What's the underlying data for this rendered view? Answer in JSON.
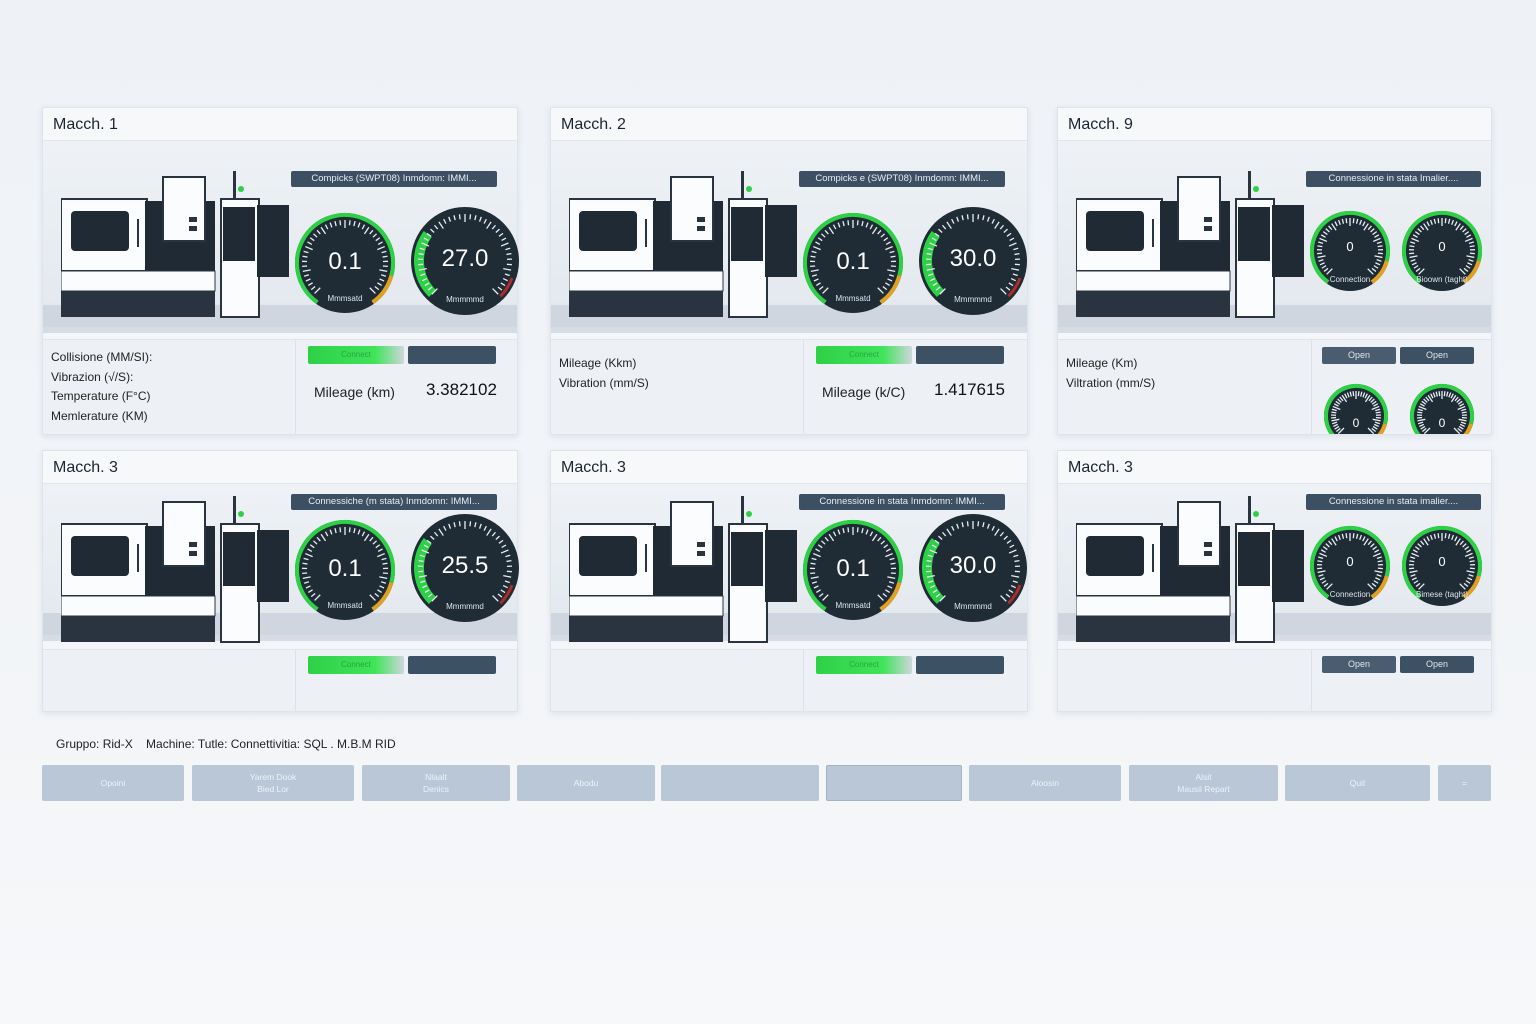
{
  "colors": {
    "accent_green": "#2ed046",
    "panel_dark": "#3d4f63",
    "gauge_face": "#1f2b35",
    "button": "#b9c7d7"
  },
  "cards": [
    {
      "title": "Macch. 1",
      "size": "large",
      "banner": "Compicks (SWPT08) Inmdomn: IMMI...",
      "gauges": [
        {
          "value": "0.1",
          "sub": "Mmmsatd",
          "type": "thin"
        },
        {
          "value": "27.0",
          "sub": "Mmmmmd",
          "type": "fill",
          "level": 0.3
        }
      ],
      "panel": {
        "labels": [
          "Collisione (MM/SI):",
          "Vibrazion (√/S):",
          "Temperature (F°C)",
          "Memlerature (KM)"
        ],
        "status": "Connect",
        "mileage_label": "Mileage (km)",
        "mileage_value": "3.382102"
      }
    },
    {
      "title": "Macch. 2",
      "size": "large",
      "banner": "Compicks e (SWPT08) Inmdomn: IMMI...",
      "gauges": [
        {
          "value": "0.1",
          "sub": "Mmmsatd",
          "type": "thin"
        },
        {
          "value": "30.0",
          "sub": "Mmmmmd",
          "type": "fill",
          "level": 0.3
        }
      ],
      "panel": {
        "labels": [
          "Mileage (Kkm)",
          "Vibration (mm/S)"
        ],
        "status": "Connect",
        "mileage_label": "Mileage (k/C)",
        "mileage_value": "1.417615"
      }
    },
    {
      "title": "Macch. 9",
      "size": "large",
      "banner": "Connessione in stata Imalier....",
      "gauges": [
        {
          "value": "0",
          "sub": "Connection",
          "type": "small"
        },
        {
          "value": "0",
          "sub": "Bioown (taght)",
          "type": "small"
        }
      ],
      "panel": {
        "labels": [
          "Mileage (Km)",
          "Viltration (mm/S)"
        ],
        "buttons": [
          "Open",
          "Open"
        ],
        "mini_gauges": [
          "0",
          "0"
        ]
      }
    },
    {
      "title": "Macch. 3",
      "size": "short",
      "banner": "Connessiche (m stata) Inmdomn: IMMI...",
      "gauges": [
        {
          "value": "0.1",
          "sub": "Mmmsatd",
          "type": "thin"
        },
        {
          "value": "25.5",
          "sub": "Mmmmmd",
          "type": "fill",
          "level": 0.3
        }
      ],
      "panel": {
        "labels": [],
        "status": "Connect"
      }
    },
    {
      "title": "Macch. 3",
      "size": "short",
      "banner": "Connessione in stata Inmdomn: IMMI...",
      "gauges": [
        {
          "value": "0.1",
          "sub": "Mmmsatd",
          "type": "thin"
        },
        {
          "value": "30.0",
          "sub": "Mmmmmd",
          "type": "fill",
          "level": 0.3
        }
      ],
      "panel": {
        "labels": [],
        "status": "Connect"
      }
    },
    {
      "title": "Macch. 3",
      "size": "short",
      "banner": "Connessione in stata imalier....",
      "gauges": [
        {
          "value": "0",
          "sub": "Connection",
          "type": "small"
        },
        {
          "value": "0",
          "sub": "Bimese (taght)",
          "type": "small"
        }
      ],
      "panel": {
        "labels": [],
        "buttons": [
          "Open",
          "Open"
        ]
      }
    }
  ],
  "footer": {
    "info": "Gruppo: Rid-X    Machine: Tutle: Connettivitia: SQL . M.B.M RID"
  },
  "toolbar": [
    {
      "lines": [
        "Opoini"
      ]
    },
    {
      "lines": [
        "Yarem Dook",
        "Bied Lor"
      ]
    },
    {
      "lines": [
        "Nlaalt",
        "Denics"
      ]
    },
    {
      "lines": [
        "Abodu"
      ]
    },
    {
      "lines": []
    },
    {
      "lines": []
    },
    {
      "lines": [
        "Aloosin"
      ]
    },
    {
      "lines": [
        "Alsit",
        "Mausil Repart"
      ]
    },
    {
      "lines": [
        "Quit"
      ]
    },
    {
      "lines": [
        "="
      ]
    }
  ]
}
